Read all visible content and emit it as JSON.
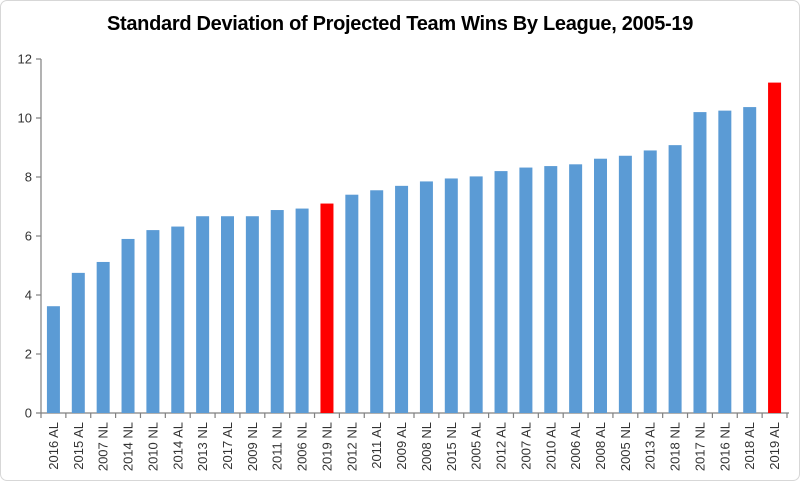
{
  "chart_data": {
    "type": "bar",
    "title": "Standard Deviation of Projected Team Wins By League, 2005-19",
    "xlabel": "",
    "ylabel": "",
    "ylim": [
      0,
      12
    ],
    "y_ticks": [
      0,
      2,
      4,
      6,
      8,
      10,
      12
    ],
    "grid": false,
    "legend_position": "none",
    "categories": [
      "2016 AL",
      "2015 AL",
      "2007 NL",
      "2014 NL",
      "2010 NL",
      "2014 AL",
      "2013 NL",
      "2017 AL",
      "2009 NL",
      "2011 NL",
      "2006 NL",
      "2019 NL",
      "2012 NL",
      "2011 AL",
      "2009 AL",
      "2008 NL",
      "2015 NL",
      "2005 AL",
      "2012 AL",
      "2007 AL",
      "2010 AL",
      "2006 AL",
      "2008 AL",
      "2005 NL",
      "2013 AL",
      "2018 NL",
      "2017 NL",
      "2016 NL",
      "2018 AL",
      "2019 AL"
    ],
    "values": [
      3.62,
      4.75,
      5.12,
      5.9,
      6.2,
      6.32,
      6.67,
      6.67,
      6.67,
      6.88,
      6.93,
      7.1,
      7.4,
      7.55,
      7.7,
      7.85,
      7.95,
      8.02,
      8.2,
      8.32,
      8.37,
      8.43,
      8.62,
      8.72,
      8.9,
      9.08,
      10.2,
      10.25,
      10.37,
      11.2
    ],
    "highlight_indices": [
      11,
      29
    ],
    "bar_color_default": "#5B9BD5",
    "bar_color_highlight": "#FF0000"
  },
  "colors": {
    "axis_line": "#808080",
    "tick_label": "#333333",
    "title_text": "#000000",
    "chart_border": "#D7D7D7",
    "background": "#FFFFFF"
  }
}
